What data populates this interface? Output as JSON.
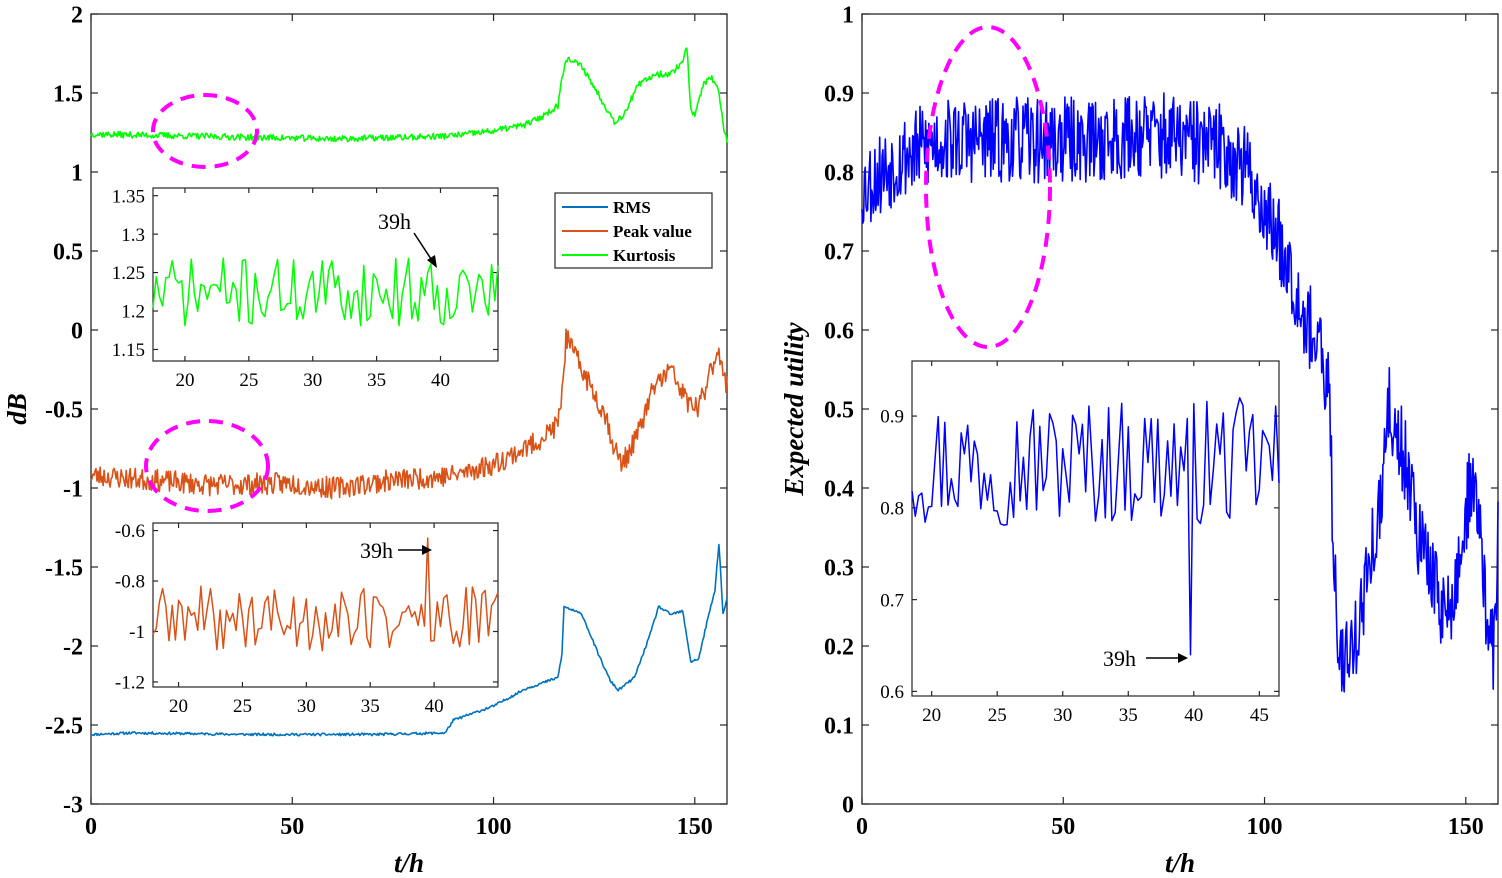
{
  "chart_data": [
    {
      "type": "line",
      "panel": "left",
      "xlabel": "t/h",
      "ylabel": "dB",
      "xlim": [
        0,
        158
      ],
      "ylim": [
        -3,
        2
      ],
      "xticks": [
        0,
        50,
        100,
        150
      ],
      "yticks": [
        -3,
        -2.5,
        -2,
        -1.5,
        -1,
        -0.5,
        0,
        0.5,
        1,
        1.5,
        2
      ],
      "xtick_labels": [
        "0",
        "50",
        "100",
        "150"
      ],
      "ytick_labels": [
        "-3",
        "-2.5",
        "-2",
        "-1.5",
        "-1",
        "-0.5",
        "0",
        "0.5",
        "1",
        "1.5",
        "2"
      ],
      "legend": {
        "position": "upper-right-middle",
        "entries": [
          "RMS",
          "Peak value",
          "Kurtosis"
        ]
      },
      "series": [
        {
          "name": "RMS",
          "color": "#0072BD",
          "noise": 0.008,
          "knots": [
            [
              0,
              -2.56
            ],
            [
              10,
              -2.55
            ],
            [
              40,
              -2.56
            ],
            [
              70,
              -2.56
            ],
            [
              88,
              -2.55
            ],
            [
              90,
              -2.47
            ],
            [
              100,
              -2.38
            ],
            [
              108,
              -2.27
            ],
            [
              116,
              -2.2
            ],
            [
              117,
              -2.05
            ],
            [
              117.5,
              -1.75
            ],
            [
              122,
              -1.8
            ],
            [
              126,
              -2.05
            ],
            [
              129,
              -2.22
            ],
            [
              131,
              -2.28
            ],
            [
              135,
              -2.2
            ],
            [
              139,
              -1.92
            ],
            [
              141,
              -1.75
            ],
            [
              144,
              -1.8
            ],
            [
              147,
              -1.78
            ],
            [
              149,
              -2.1
            ],
            [
              151,
              -2.08
            ],
            [
              153,
              -1.85
            ],
            [
              155,
              -1.65
            ],
            [
              156,
              -1.35
            ],
            [
              157,
              -1.8
            ],
            [
              158,
              -1.7
            ]
          ]
        },
        {
          "name": "Peak value",
          "color": "#D95319",
          "noise": 0.07,
          "knots": [
            [
              0,
              -0.92
            ],
            [
              15,
              -0.95
            ],
            [
              30,
              -0.98
            ],
            [
              50,
              -0.97
            ],
            [
              60,
              -1.0
            ],
            [
              75,
              -0.95
            ],
            [
              90,
              -0.92
            ],
            [
              100,
              -0.85
            ],
            [
              110,
              -0.72
            ],
            [
              116,
              -0.6
            ],
            [
              117,
              -0.4
            ],
            [
              118,
              -0.05
            ],
            [
              120,
              -0.15
            ],
            [
              124,
              -0.35
            ],
            [
              128,
              -0.55
            ],
            [
              130,
              -0.75
            ],
            [
              132,
              -0.85
            ],
            [
              136,
              -0.65
            ],
            [
              140,
              -0.35
            ],
            [
              144,
              -0.25
            ],
            [
              148,
              -0.45
            ],
            [
              151,
              -0.5
            ],
            [
              154,
              -0.25
            ],
            [
              156,
              -0.1
            ],
            [
              157,
              -0.3
            ],
            [
              158,
              -0.35
            ]
          ]
        },
        {
          "name": "Kurtosis",
          "color": "#00FF00",
          "noise": 0.02,
          "knots": [
            [
              0,
              1.24
            ],
            [
              20,
              1.23
            ],
            [
              40,
              1.22
            ],
            [
              60,
              1.21
            ],
            [
              80,
              1.22
            ],
            [
              90,
              1.23
            ],
            [
              100,
              1.26
            ],
            [
              108,
              1.3
            ],
            [
              112,
              1.35
            ],
            [
              116,
              1.42
            ],
            [
              117,
              1.6
            ],
            [
              118,
              1.72
            ],
            [
              122,
              1.67
            ],
            [
              124,
              1.58
            ],
            [
              127,
              1.45
            ],
            [
              130,
              1.32
            ],
            [
              132,
              1.35
            ],
            [
              136,
              1.55
            ],
            [
              140,
              1.62
            ],
            [
              144,
              1.62
            ],
            [
              147,
              1.7
            ],
            [
              148,
              1.8
            ],
            [
              149,
              1.4
            ],
            [
              150,
              1.35
            ],
            [
              152,
              1.55
            ],
            [
              154,
              1.6
            ],
            [
              156,
              1.5
            ],
            [
              157,
              1.3
            ],
            [
              158,
              1.2
            ]
          ]
        }
      ]
    },
    {
      "type": "line",
      "panel": "left-inset-top",
      "xlim": [
        17.5,
        44.5
      ],
      "ylim": [
        1.135,
        1.36
      ],
      "xticks": [
        20,
        25,
        30,
        35,
        40
      ],
      "yticks": [
        1.15,
        1.2,
        1.25,
        1.3,
        1.35
      ],
      "xtick_labels": [
        "20",
        "25",
        "30",
        "35",
        "40"
      ],
      "ytick_labels": [
        "1.15",
        "1.2",
        "1.25",
        "1.3",
        "1.35"
      ],
      "series": [
        {
          "name": "Kurtosis",
          "color": "#00FF00",
          "mean": 1.225,
          "amplitude": 0.045
        }
      ],
      "annotation": {
        "text": "39h",
        "x": 39,
        "y": 1.25
      }
    },
    {
      "type": "line",
      "panel": "left-inset-bottom",
      "xlim": [
        18,
        45
      ],
      "ylim": [
        -1.22,
        -0.57
      ],
      "xticks": [
        20,
        25,
        30,
        35,
        40
      ],
      "yticks": [
        -1.2,
        -1.0,
        -0.8,
        -0.6
      ],
      "xtick_labels": [
        "20",
        "25",
        "30",
        "35",
        "40"
      ],
      "ytick_labels": [
        "-1.2",
        "-1",
        "-0.8",
        "-0.6"
      ],
      "series": [
        {
          "name": "Peak value",
          "color": "#D95319",
          "mean": -0.95,
          "amplitude": 0.13
        }
      ],
      "annotation": {
        "text": "39h",
        "x": 39.5,
        "y": -0.63
      }
    },
    {
      "type": "line",
      "panel": "right",
      "xlabel": "t/h",
      "ylabel": "Expected utility",
      "xlim": [
        0,
        158
      ],
      "ylim": [
        0,
        1
      ],
      "xticks": [
        0,
        50,
        100,
        150
      ],
      "yticks": [
        0,
        0.1,
        0.2,
        0.3,
        0.4,
        0.5,
        0.6,
        0.7,
        0.8,
        0.9,
        1
      ],
      "xtick_labels": [
        "0",
        "50",
        "100",
        "150"
      ],
      "ytick_labels": [
        "0",
        "0.1",
        "0.2",
        "0.3",
        "0.4",
        "0.5",
        "0.6",
        "0.7",
        "0.8",
        "0.9",
        "1"
      ],
      "series": [
        {
          "name": "Expected utility",
          "color": "#0000FF",
          "noise": 0.055,
          "knots": [
            [
              0,
              0.78
            ],
            [
              5,
              0.8
            ],
            [
              10,
              0.82
            ],
            [
              20,
              0.84
            ],
            [
              40,
              0.84
            ],
            [
              60,
              0.84
            ],
            [
              70,
              0.85
            ],
            [
              80,
              0.84
            ],
            [
              90,
              0.83
            ],
            [
              96,
              0.8
            ],
            [
              100,
              0.75
            ],
            [
              105,
              0.7
            ],
            [
              110,
              0.62
            ],
            [
              113,
              0.58
            ],
            [
              116,
              0.52
            ],
            [
              117,
              0.35
            ],
            [
              118,
              0.22
            ],
            [
              120,
              0.18
            ],
            [
              123,
              0.22
            ],
            [
              126,
              0.3
            ],
            [
              129,
              0.38
            ],
            [
              131,
              0.5
            ],
            [
              134,
              0.45
            ],
            [
              137,
              0.4
            ],
            [
              138,
              0.35
            ],
            [
              139,
              0.32
            ],
            [
              141,
              0.3
            ],
            [
              143,
              0.27
            ],
            [
              145,
              0.24
            ],
            [
              147,
              0.25
            ],
            [
              149,
              0.33
            ],
            [
              151,
              0.4
            ],
            [
              153,
              0.38
            ],
            [
              155,
              0.25
            ],
            [
              157,
              0.18
            ],
            [
              158,
              0.35
            ]
          ]
        }
      ]
    },
    {
      "type": "line",
      "panel": "right-inset",
      "xlim": [
        18.5,
        46.5
      ],
      "ylim": [
        0.595,
        0.96
      ],
      "xticks": [
        20,
        25,
        30,
        35,
        40,
        45
      ],
      "yticks": [
        0.6,
        0.7,
        0.8,
        0.9
      ],
      "xtick_labels": [
        "20",
        "25",
        "30",
        "35",
        "40",
        "45"
      ],
      "ytick_labels": [
        "0.6",
        "0.7",
        "0.8",
        "0.9"
      ],
      "series": [
        {
          "name": "Expected utility",
          "color": "#0000FF",
          "mean": 0.85,
          "amplitude": 0.07
        }
      ],
      "annotation": {
        "text": "39h",
        "x": 39.8,
        "y": 0.64
      }
    }
  ],
  "labels": {
    "left_xlabel": "t/h",
    "left_ylabel": "dB",
    "right_xlabel": "t/h",
    "right_ylabel": "Expected utility",
    "legend_rms": "RMS",
    "legend_peak": "Peak value",
    "legend_kurtosis": "Kurtosis",
    "annot_kurtosis": "39h",
    "annot_peak": "39h",
    "annot_utility": "39h"
  },
  "colors": {
    "rms": "#0072BD",
    "peak": "#D95319",
    "kurtosis": "#00FF00",
    "utility": "#0000FF",
    "highlight_ellipse": "#FF00FF"
  }
}
